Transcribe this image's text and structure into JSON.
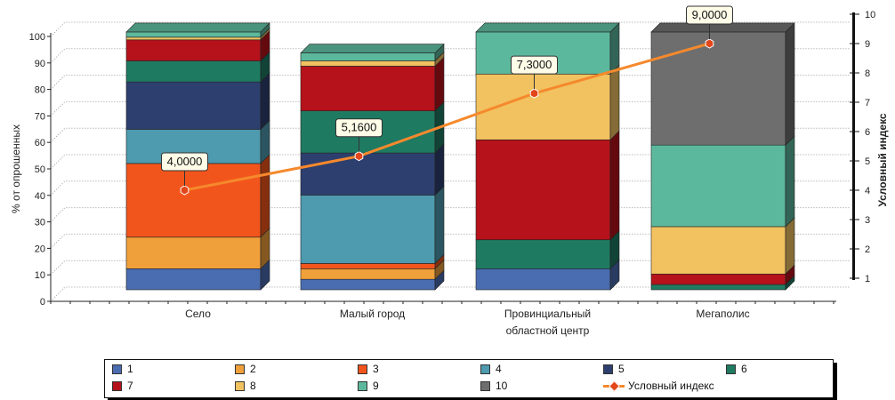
{
  "chart_data": {
    "type": "bar",
    "stacked": true,
    "categories": [
      [
        "Село"
      ],
      [
        "Малый город"
      ],
      [
        "Провинциальный",
        "областной центр"
      ],
      [
        "Мегаполис"
      ]
    ],
    "ylabel": "% от опрошенных",
    "y2label": "Условный индекс",
    "ylim": [
      0,
      100
    ],
    "y2lim": [
      1,
      10
    ],
    "yticks": [
      0,
      10,
      20,
      30,
      40,
      50,
      60,
      70,
      80,
      90,
      100
    ],
    "y2ticks": [
      1,
      2,
      3,
      4,
      5,
      6,
      7,
      8,
      9,
      10
    ],
    "series": [
      {
        "name": "1",
        "color": "#4A6CB0",
        "values": [
          8,
          4,
          8,
          0
        ]
      },
      {
        "name": "2",
        "color": "#F0A03A",
        "values": [
          12,
          4,
          0,
          0
        ]
      },
      {
        "name": "3",
        "color": "#F2551C",
        "values": [
          28,
          2,
          0,
          0
        ]
      },
      {
        "name": "4",
        "color": "#4E9AAE",
        "values": [
          13,
          26,
          0,
          0
        ]
      },
      {
        "name": "5",
        "color": "#2D3F6E",
        "values": [
          18,
          16,
          0,
          0
        ]
      },
      {
        "name": "6",
        "color": "#1F7A62",
        "values": [
          8,
          16,
          11,
          2
        ]
      },
      {
        "name": "7",
        "color": "#B5121B",
        "values": [
          8,
          17,
          38,
          4
        ]
      },
      {
        "name": "8",
        "color": "#F2C260",
        "values": [
          1,
          2,
          25,
          18
        ]
      },
      {
        "name": "9",
        "color": "#5CB89C",
        "values": [
          2,
          3,
          16,
          31
        ]
      },
      {
        "name": "10",
        "color": "#6E6E6E",
        "values": [
          0,
          0,
          0,
          43
        ]
      }
    ],
    "line": {
      "name": "Условный индекс",
      "color": "#F5892D",
      "marker_color": "#E2461A",
      "values": [
        4.0,
        5.16,
        7.3,
        9.0
      ],
      "labels": [
        "4,0000",
        "5,1600",
        "7,3000",
        "9,0000"
      ]
    },
    "grid": "horizontal dotted",
    "legend_position": "bottom"
  }
}
